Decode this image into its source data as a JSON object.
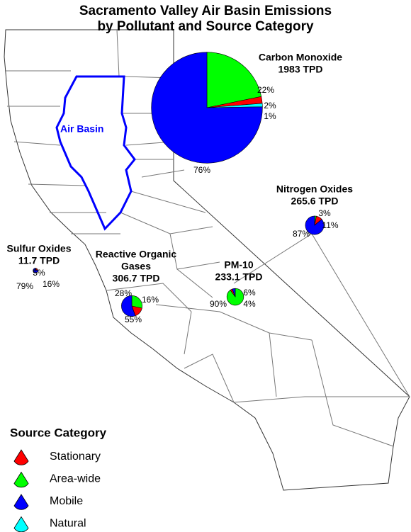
{
  "title": [
    "Sacramento Valley Air Basin Emissions",
    "by Pollutant and Source Category"
  ],
  "region_label": "Air Basin",
  "legend": {
    "title": "Source Category",
    "items": [
      {
        "name": "Stationary",
        "color": "#ff0000"
      },
      {
        "name": "Area-wide",
        "color": "#00ff00"
      },
      {
        "name": "Mobile",
        "color": "#0000ff"
      },
      {
        "name": "Natural",
        "color": "#00ffff"
      }
    ]
  },
  "pies": [
    {
      "name": [
        "Carbon Monoxide"
      ],
      "total": {
        "value": 1983,
        "label": "1983 TPD"
      },
      "values": [
        2,
        22,
        76,
        1
      ],
      "value_labels": [
        "2%",
        "22%",
        "76%",
        "1%"
      ]
    },
    {
      "name": [
        "Nitrogen Oxides"
      ],
      "total": {
        "value": 265.6,
        "label": "265.6 TPD"
      },
      "values": [
        11,
        3,
        87,
        null
      ],
      "value_labels": [
        "11%",
        "3%",
        "87%",
        null
      ]
    },
    {
      "name": [
        "Sulfur Oxides"
      ],
      "total": {
        "value": 11.7,
        "label": "11.7 TPD"
      },
      "values": [
        16,
        5,
        79,
        null
      ],
      "value_labels": [
        "16%",
        "5%",
        "79%",
        null
      ]
    },
    {
      "name": [
        "Reactive Organic",
        "Gases"
      ],
      "total": {
        "value": 306.7,
        "label": "306.7 TPD"
      },
      "values": [
        16,
        28,
        55,
        null
      ],
      "value_labels": [
        "16%",
        "28%",
        "55%",
        null
      ]
    },
    {
      "name": [
        "PM-10"
      ],
      "total": {
        "value": 233.1,
        "label": "233.1 TPD"
      },
      "values": [
        4,
        90,
        6,
        null
      ],
      "value_labels": [
        "4%",
        "90%",
        "6%",
        null
      ]
    }
  ]
}
